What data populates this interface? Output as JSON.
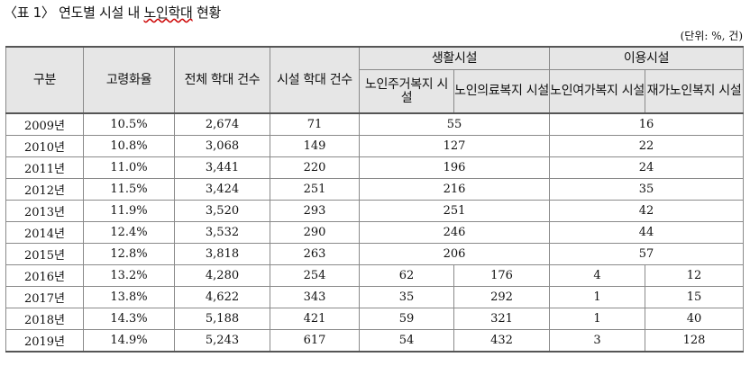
{
  "title": {
    "prefix": "〈표 1〉 연도별 시설 내 ",
    "underlined": "노인학대",
    "suffix": " 현황"
  },
  "unit": "(단위: %, 건)",
  "headers": {
    "division": "구분",
    "aging_rate": "고령화율",
    "total": "전체 학대 건수",
    "facility": "시설 학대 건수",
    "living": "생활시설",
    "using": "이용시설",
    "living_sub": [
      "노인주거복지 시설",
      "노인의료복지 시설"
    ],
    "using_sub": [
      "노인여가복지 시설",
      "재가노인복지 시설"
    ]
  },
  "rows_merged": [
    {
      "year": "2009년",
      "rate": "10.5%",
      "total": "2,674",
      "facility": "71",
      "living": "55",
      "using": "16"
    },
    {
      "year": "2010년",
      "rate": "10.8%",
      "total": "3,068",
      "facility": "149",
      "living": "127",
      "using": "22"
    },
    {
      "year": "2011년",
      "rate": "11.0%",
      "total": "3,441",
      "facility": "220",
      "living": "196",
      "using": "24"
    },
    {
      "year": "2012년",
      "rate": "11.5%",
      "total": "3,424",
      "facility": "251",
      "living": "216",
      "using": "35"
    },
    {
      "year": "2013년",
      "rate": "11.9%",
      "total": "3,520",
      "facility": "293",
      "living": "251",
      "using": "42"
    },
    {
      "year": "2014년",
      "rate": "12.4%",
      "total": "3,532",
      "facility": "290",
      "living": "246",
      "using": "44"
    },
    {
      "year": "2015년",
      "rate": "12.8%",
      "total": "3,818",
      "facility": "263",
      "living": "206",
      "using": "57"
    }
  ],
  "rows_split": [
    {
      "year": "2016년",
      "rate": "13.2%",
      "total": "4,280",
      "facility": "254",
      "housing": "62",
      "medical": "176",
      "leisure": "4",
      "home": "12"
    },
    {
      "year": "2017년",
      "rate": "13.8%",
      "total": "4,622",
      "facility": "343",
      "housing": "35",
      "medical": "292",
      "leisure": "1",
      "home": "15"
    },
    {
      "year": "2018년",
      "rate": "14.3%",
      "total": "5,188",
      "facility": "421",
      "housing": "59",
      "medical": "321",
      "leisure": "1",
      "home": "40"
    },
    {
      "year": "2019년",
      "rate": "14.9%",
      "total": "5,243",
      "facility": "617",
      "housing": "54",
      "medical": "432",
      "leisure": "3",
      "home": "128"
    }
  ]
}
